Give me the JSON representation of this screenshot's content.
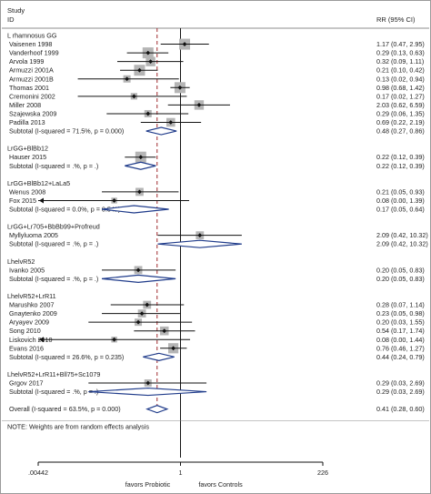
{
  "chart_data": {
    "type": "forest",
    "title": "",
    "header": {
      "col1_line1": "Study",
      "col1_line2": "ID",
      "col2": "RR (95% CI)"
    },
    "axis": {
      "scale": "log",
      "range": [
        0.00442,
        226
      ],
      "ticks": [
        {
          "value": 0.00442,
          "label": ".00442"
        },
        {
          "value": 1,
          "label": "1"
        },
        {
          "value": 226,
          "label": "226"
        }
      ],
      "left_label": "favors Probiotic",
      "right_label": "favors Controls"
    },
    "overall_effect_line": 0.41,
    "rows": [
      {
        "kind": "group",
        "label": "L rhamnosus GG"
      },
      {
        "kind": "study",
        "label": "Vaisenen 1998",
        "est": 1.17,
        "lo": 0.47,
        "hi": 2.95,
        "ci_text": "1.17 (0.47, 2.95)",
        "weight": 1.0
      },
      {
        "kind": "study",
        "label": "Vanderhoof 1999",
        "est": 0.29,
        "lo": 0.13,
        "hi": 0.63,
        "ci_text": "0.29 (0.13, 0.63)",
        "weight": 1.0
      },
      {
        "kind": "study",
        "label": "Arvola 1999",
        "est": 0.32,
        "lo": 0.09,
        "hi": 1.11,
        "ci_text": "0.32 (0.09, 1.11)",
        "weight": 0.8
      },
      {
        "kind": "study",
        "label": "Armuzzi 2001A",
        "est": 0.21,
        "lo": 0.1,
        "hi": 0.42,
        "ci_text": "0.21 (0.10, 0.42)",
        "weight": 1.0
      },
      {
        "kind": "study",
        "label": "Armuzzi 2001B",
        "est": 0.13,
        "lo": 0.02,
        "hi": 0.94,
        "ci_text": "0.13 (0.02, 0.94)",
        "weight": 0.5
      },
      {
        "kind": "study",
        "label": "Thomas 2001",
        "est": 0.98,
        "lo": 0.68,
        "hi": 1.42,
        "ci_text": "0.98 (0.68, 1.42)",
        "weight": 1.0
      },
      {
        "kind": "study",
        "label": "Cremonini 2002",
        "est": 0.17,
        "lo": 0.02,
        "hi": 1.27,
        "ci_text": "0.17 (0.02, 1.27)",
        "weight": 0.4
      },
      {
        "kind": "study",
        "label": "Miller 2008",
        "est": 2.03,
        "lo": 0.62,
        "hi": 6.59,
        "ci_text": "2.03 (0.62, 6.59)",
        "weight": 0.8
      },
      {
        "kind": "study",
        "label": "Szajewska 2009",
        "est": 0.29,
        "lo": 0.06,
        "hi": 1.35,
        "ci_text": "0.29 (0.06, 1.35)",
        "weight": 0.5
      },
      {
        "kind": "study",
        "label": "Padilla 2013",
        "est": 0.69,
        "lo": 0.22,
        "hi": 2.19,
        "ci_text": "0.69 (0.22, 2.19)",
        "weight": 0.7
      },
      {
        "kind": "subtotal",
        "label": "Subtotal  (I-squared = 71.5%, p = 0.000)",
        "est": 0.48,
        "lo": 0.27,
        "hi": 0.86,
        "ci_text": "0.48 (0.27, 0.86)"
      },
      {
        "kind": "spacer"
      },
      {
        "kind": "group",
        "label": "LrGG+BlBb12"
      },
      {
        "kind": "study",
        "label": "Hauser 2015",
        "est": 0.22,
        "lo": 0.12,
        "hi": 0.39,
        "ci_text": "0.22 (0.12, 0.39)",
        "weight": 1.0
      },
      {
        "kind": "subtotal",
        "label": "Subtotal  (I-squared = .%, p = .)",
        "est": 0.22,
        "lo": 0.12,
        "hi": 0.39,
        "ci_text": "0.22 (0.12, 0.39)"
      },
      {
        "kind": "spacer"
      },
      {
        "kind": "group",
        "label": "LrGG+BlBb12+LaLa5"
      },
      {
        "kind": "study",
        "label": "Wenus 2008",
        "est": 0.21,
        "lo": 0.05,
        "hi": 0.93,
        "ci_text": "0.21 (0.05, 0.93)",
        "weight": 0.6
      },
      {
        "kind": "study",
        "label": "Fox 2015",
        "est": 0.08,
        "lo": 0.0,
        "hi": 1.39,
        "ci_text": "0.08 (0.00, 1.39)",
        "weight": 0.3
      },
      {
        "kind": "subtotal",
        "label": "Subtotal  (I-squared = 0.0%, p = 0.542)",
        "est": 0.17,
        "lo": 0.05,
        "hi": 0.64,
        "ci_text": "0.17 (0.05, 0.64)"
      },
      {
        "kind": "spacer"
      },
      {
        "kind": "group",
        "label": "LrGG+Lr705+BbBb99+Profreud"
      },
      {
        "kind": "study",
        "label": "Myllyluoma 2005",
        "est": 2.09,
        "lo": 0.42,
        "hi": 10.32,
        "ci_text": "2.09 (0.42, 10.32)",
        "weight": 0.6
      },
      {
        "kind": "subtotal",
        "label": "Subtotal  (I-squared = .%, p = .)",
        "est": 2.09,
        "lo": 0.42,
        "hi": 10.32,
        "ci_text": "2.09 (0.42, 10.32)"
      },
      {
        "kind": "spacer"
      },
      {
        "kind": "group",
        "label": "LhelvR52"
      },
      {
        "kind": "study",
        "label": "Ivanko 2005",
        "est": 0.2,
        "lo": 0.05,
        "hi": 0.83,
        "ci_text": "0.20 (0.05, 0.83)",
        "weight": 0.6
      },
      {
        "kind": "subtotal",
        "label": "Subtotal  (I-squared = .%, p = .)",
        "est": 0.2,
        "lo": 0.05,
        "hi": 0.83,
        "ci_text": "0.20 (0.05, 0.83)"
      },
      {
        "kind": "spacer"
      },
      {
        "kind": "group",
        "label": "LhelvR52+LrR11"
      },
      {
        "kind": "study",
        "label": "Marushko 2007",
        "est": 0.28,
        "lo": 0.07,
        "hi": 1.14,
        "ci_text": "0.28 (0.07, 1.14)",
        "weight": 0.6
      },
      {
        "kind": "study",
        "label": "Gnaytenko 2009",
        "est": 0.23,
        "lo": 0.05,
        "hi": 0.98,
        "ci_text": "0.23 (0.05, 0.98)",
        "weight": 0.6
      },
      {
        "kind": "study",
        "label": "Aryayev 2009",
        "est": 0.2,
        "lo": 0.03,
        "hi": 1.55,
        "ci_text": "0.20 (0.03, 1.55)",
        "weight": 0.5
      },
      {
        "kind": "study",
        "label": "Song 2010",
        "est": 0.54,
        "lo": 0.17,
        "hi": 1.74,
        "ci_text": "0.54 (0.17, 1.74)",
        "weight": 0.7
      },
      {
        "kind": "study",
        "label": "Liskovich 2010",
        "est": 0.08,
        "lo": 0.0,
        "hi": 1.44,
        "ci_text": "0.08 (0.00, 1.44)",
        "weight": 0.3
      },
      {
        "kind": "study",
        "label": "Evans 2016",
        "est": 0.76,
        "lo": 0.46,
        "hi": 1.27,
        "ci_text": "0.76 (0.46, 1.27)",
        "weight": 0.9
      },
      {
        "kind": "subtotal",
        "label": "Subtotal  (I-squared = 26.6%, p = 0.235)",
        "est": 0.44,
        "lo": 0.24,
        "hi": 0.79,
        "ci_text": "0.44 (0.24, 0.79)"
      },
      {
        "kind": "spacer"
      },
      {
        "kind": "group",
        "label": "LhelvR52+LrR11+Bll75+Sc1079"
      },
      {
        "kind": "study",
        "label": "Grgov 2017",
        "est": 0.29,
        "lo": 0.03,
        "hi": 2.69,
        "ci_text": "0.29 (0.03, 2.69)",
        "weight": 0.5
      },
      {
        "kind": "subtotal",
        "label": "Subtotal  (I-squared = .%, p = .)",
        "est": 0.29,
        "lo": 0.03,
        "hi": 2.69,
        "ci_text": "0.29 (0.03, 2.69)"
      },
      {
        "kind": "spacer"
      },
      {
        "kind": "overall",
        "label": "Overall  (I-squared = 63.5%, p = 0.000)",
        "est": 0.41,
        "lo": 0.28,
        "hi": 0.6,
        "ci_text": "0.41 (0.28, 0.60)"
      },
      {
        "kind": "spacer"
      },
      {
        "kind": "note",
        "label": "NOTE: Weights are from random effects analysis"
      }
    ]
  }
}
